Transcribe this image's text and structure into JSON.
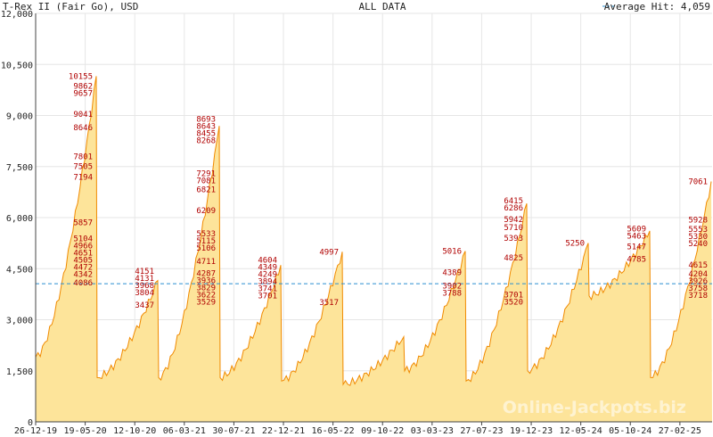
{
  "header": {
    "title": "T-Rex II (Fair Go), USD",
    "center": "ALL DATA",
    "legend": "Average Hit: 4,059"
  },
  "watermark": "Online-Jackpots.biz",
  "colors": {
    "fill": "#fde49a",
    "line": "#f08a00",
    "average": "#2a8fd0",
    "grid": "#e6e6e6",
    "label": "#b00000"
  },
  "chart_data": {
    "type": "area",
    "title": "T-Rex II (Fair Go), USD",
    "subtitle": "ALL DATA",
    "ylim": [
      0,
      12000
    ],
    "yticks": [
      0,
      1500,
      3000,
      4500,
      6000,
      7500,
      9000,
      10500,
      12000
    ],
    "ytick_labels": [
      "0",
      "1,500",
      "3,000",
      "4,500",
      "6,000",
      "7,500",
      "9,000",
      "10,500",
      "12,000"
    ],
    "xticks": [
      "26-12-19",
      "19-05-20",
      "12-10-20",
      "06-03-21",
      "30-07-21",
      "22-12-21",
      "16-05-22",
      "09-10-22",
      "03-03-23",
      "27-07-23",
      "19-12-23",
      "12-05-24",
      "05-10-24",
      "27-02-25"
    ],
    "grid": true,
    "average": 4059,
    "average_label": "Average Hit: 4,059",
    "cycles": [
      {
        "start": 1900,
        "peak": 10155,
        "labels": [
          4086,
          4342,
          4472,
          4505,
          4651,
          4966,
          5104,
          5857,
          7194,
          7505,
          7801,
          8646,
          9041,
          9657,
          9862,
          10155
        ]
      },
      {
        "start": 1300,
        "peak": 4151,
        "labels": [
          3437,
          3804,
          3968,
          4131,
          4151
        ]
      },
      {
        "start": 1300,
        "peak": 8693,
        "labels": [
          3529,
          3622,
          3829,
          3936,
          4287,
          4711,
          5106,
          5115,
          5533,
          6209,
          6821,
          7081,
          7291,
          8268,
          8455,
          8643,
          8693
        ]
      },
      {
        "start": 1300,
        "peak": 4604,
        "labels": [
          3701,
          3741,
          3894,
          4249,
          4349,
          4604
        ]
      },
      {
        "start": 1200,
        "peak": 4997,
        "labels": [
          3517,
          4997
        ]
      },
      {
        "start": 1100,
        "peak": 2500,
        "labels": []
      },
      {
        "start": 1500,
        "peak": 5016,
        "labels": [
          3788,
          3902,
          4389,
          5016
        ]
      },
      {
        "start": 1200,
        "peak": 6415,
        "labels": [
          3520,
          3701,
          4825,
          5393,
          5710,
          5942,
          6286,
          6415
        ]
      },
      {
        "start": 1500,
        "peak": 5250,
        "labels": [
          5250
        ]
      },
      {
        "start": 3700,
        "peak": 5609,
        "labels": [
          4785,
          5147,
          5463,
          5609
        ]
      },
      {
        "start": 1300,
        "peak": 7061,
        "labels": [
          3718,
          3758,
          3926,
          4204,
          4615,
          5240,
          5330,
          5553,
          5928,
          7061
        ]
      }
    ]
  }
}
